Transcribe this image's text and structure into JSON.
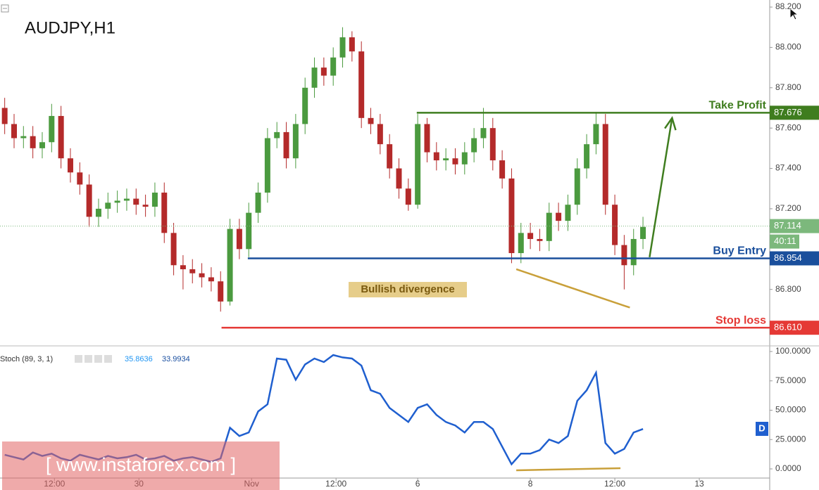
{
  "chart_data": [
    {
      "type": "candlestick",
      "title": "AUDJPY,H1",
      "x": [
        0.5,
        1.5,
        2.5,
        3.5,
        4.5,
        5.5,
        6.5,
        7.5,
        8.5,
        9.5,
        10.5,
        11.5,
        12.5,
        13.5,
        14.5,
        15.5,
        16.5,
        17.5,
        18.5,
        19.5,
        20.5,
        21.5,
        22.5,
        23.5,
        24.5,
        25.5,
        26.5,
        27.5,
        28.5,
        29.5,
        30.5,
        31.5,
        32.5,
        33.5,
        34.5,
        35.5,
        36.5,
        37.5,
        38.5,
        39.5,
        40.5,
        41.5,
        42.5,
        43.5,
        44.5,
        45.5,
        46.5,
        47.5,
        48.5,
        49.5,
        50.5,
        51.5,
        52.5,
        53.5,
        54.5,
        55.5,
        56.5,
        57.5,
        58.5,
        59.5,
        60.5,
        61.5,
        62.5,
        63.5,
        64.5,
        65.5,
        66.5,
        67.5,
        68.5
      ],
      "open": [
        87.7,
        87.62,
        87.55,
        87.56,
        87.5,
        87.53,
        87.66,
        87.45,
        87.38,
        87.32,
        87.16,
        87.2,
        87.23,
        87.24,
        87.25,
        87.22,
        87.21,
        87.28,
        87.08,
        86.92,
        86.9,
        86.88,
        86.86,
        86.84,
        86.74,
        87.1,
        87.0,
        87.18,
        87.28,
        87.55,
        87.58,
        87.45,
        87.62,
        87.8,
        87.9,
        87.86,
        87.95,
        88.05,
        87.98,
        87.65,
        87.62,
        87.52,
        87.4,
        87.3,
        87.22,
        87.62,
        87.48,
        87.44,
        87.45,
        87.42,
        87.48,
        87.55,
        87.6,
        87.44,
        87.35,
        86.98,
        87.08,
        87.05,
        87.04,
        87.18,
        87.14,
        87.22,
        87.4,
        87.52,
        87.62,
        87.22,
        87.02,
        86.92,
        87.05
      ],
      "high": [
        87.75,
        87.67,
        87.61,
        87.61,
        87.58,
        87.72,
        87.71,
        87.5,
        87.43,
        87.37,
        87.25,
        87.28,
        87.29,
        87.3,
        87.3,
        87.27,
        87.33,
        87.33,
        87.13,
        86.97,
        86.95,
        86.93,
        86.91,
        86.89,
        87.15,
        87.15,
        87.23,
        87.33,
        87.6,
        87.63,
        87.63,
        87.67,
        87.85,
        87.95,
        87.95,
        88.0,
        88.1,
        88.08,
        88.03,
        87.7,
        87.67,
        87.57,
        87.45,
        87.35,
        87.67,
        87.65,
        87.53,
        87.5,
        87.5,
        87.53,
        87.6,
        87.7,
        87.65,
        87.49,
        87.4,
        87.13,
        87.13,
        87.1,
        87.23,
        87.23,
        87.27,
        87.45,
        87.57,
        87.68,
        87.67,
        87.27,
        87.07,
        87.1,
        87.16
      ],
      "low": [
        87.57,
        87.5,
        87.5,
        87.45,
        87.45,
        87.48,
        87.4,
        87.33,
        87.27,
        87.11,
        87.11,
        87.15,
        87.18,
        87.19,
        87.17,
        87.16,
        87.16,
        87.03,
        86.87,
        86.8,
        86.83,
        86.81,
        86.79,
        86.69,
        86.72,
        86.95,
        86.96,
        87.13,
        87.23,
        87.5,
        87.4,
        87.4,
        87.57,
        87.75,
        87.81,
        87.81,
        87.9,
        87.93,
        87.6,
        87.57,
        87.47,
        87.35,
        87.25,
        87.19,
        87.2,
        87.43,
        87.39,
        87.39,
        87.37,
        87.37,
        87.43,
        87.5,
        87.39,
        87.3,
        86.93,
        86.93,
        87.0,
        86.99,
        86.99,
        87.09,
        87.09,
        87.17,
        87.35,
        87.47,
        87.17,
        86.97,
        86.8,
        86.87,
        87.0
      ],
      "close": [
        87.62,
        87.55,
        87.56,
        87.5,
        87.53,
        87.66,
        87.45,
        87.38,
        87.32,
        87.16,
        87.2,
        87.23,
        87.24,
        87.25,
        87.22,
        87.21,
        87.28,
        87.08,
        86.92,
        86.9,
        86.88,
        86.86,
        86.84,
        86.74,
        87.1,
        87.0,
        87.18,
        87.28,
        87.55,
        87.58,
        87.45,
        87.62,
        87.8,
        87.9,
        87.86,
        87.95,
        88.05,
        87.98,
        87.65,
        87.62,
        87.52,
        87.4,
        87.3,
        87.22,
        87.62,
        87.48,
        87.44,
        87.45,
        87.42,
        87.48,
        87.55,
        87.6,
        87.44,
        87.35,
        86.98,
        87.08,
        87.05,
        87.04,
        87.18,
        87.14,
        87.22,
        87.4,
        87.52,
        87.62,
        87.22,
        87.02,
        86.92,
        87.05,
        87.11
      ],
      "up_color": "#4b9a3f",
      "down_color": "#b42a2a",
      "xlim": [
        0,
        82
      ],
      "ylim": [
        86.52,
        88.235
      ],
      "yticks": [
        {
          "value": 88.2,
          "label": "88.200"
        },
        {
          "value": 88.0,
          "label": "88.000"
        },
        {
          "value": 87.8,
          "label": "87.800"
        },
        {
          "value": 87.6,
          "label": "87.600"
        },
        {
          "value": 87.4,
          "label": "87.400"
        },
        {
          "value": 87.2,
          "label": "87.200"
        },
        {
          "value": 86.8,
          "label": "86.800"
        }
      ],
      "xticks": [
        {
          "value": 5.8,
          "label": "12:00"
        },
        {
          "value": 14.8,
          "label": "30"
        },
        {
          "value": 26.8,
          "label": "Nov"
        },
        {
          "value": 35.8,
          "label": "12:00"
        },
        {
          "value": 44.5,
          "label": "6"
        },
        {
          "value": 56.5,
          "label": "8"
        },
        {
          "value": 65.5,
          "label": "12:00"
        },
        {
          "value": 74.5,
          "label": "13"
        }
      ],
      "levels": [
        {
          "label": "Take Profit",
          "value": 87.676,
          "value_label": "87.676",
          "x_start": 44.4,
          "color": "#3f7d1f"
        },
        {
          "label": "Buy Entry",
          "value": 86.954,
          "value_label": "86.954",
          "x_start": 26.4,
          "color": "#1a4f9c"
        },
        {
          "label": "Stop loss",
          "value": 86.61,
          "value_label": "86.610",
          "x_start": 23.6,
          "color": "#e53935"
        }
      ],
      "current_price": {
        "value": 87.114,
        "label": "87.114",
        "countdown": "40:11",
        "color": "#7cb87c"
      },
      "divergence_note": "Bullish divergence",
      "divergence_line": {
        "x": [
          55.0,
          67.1
        ],
        "values": [
          86.9,
          86.71
        ],
        "color": "#c9a03a"
      },
      "arrow": {
        "x": [
          69.2,
          71.6
        ],
        "values": [
          86.96,
          87.65
        ],
        "color": "#3f7d1f"
      }
    },
    {
      "type": "line",
      "title": "Stoch (89, 3, 1)",
      "readings": [
        35.8636,
        33.9934
      ],
      "reading_colors": [
        "#2196f3",
        "#1a4fa0"
      ],
      "series": [
        {
          "color": "#1f5fcf",
          "values": [
            12,
            10,
            8,
            14,
            11,
            13,
            9,
            7,
            12,
            10,
            8,
            11,
            9,
            10,
            12,
            8,
            9,
            11,
            7,
            9,
            10,
            8,
            6,
            9,
            35,
            28,
            31,
            49,
            55,
            94,
            93,
            76,
            89,
            94,
            91,
            97,
            95,
            94,
            88,
            67,
            64,
            52,
            46,
            40,
            52,
            55,
            46,
            40,
            37,
            31,
            40,
            40,
            34,
            19,
            4,
            13,
            13,
            16,
            25,
            22,
            28,
            58,
            67,
            82,
            22,
            13,
            17,
            31,
            34
          ]
        }
      ],
      "ylim": [
        -7.8,
        104.2
      ],
      "yticks": [
        {
          "value": 100,
          "label": "100.0000"
        },
        {
          "value": 75,
          "label": "75.0000"
        },
        {
          "value": 50,
          "label": "50.0000"
        },
        {
          "value": 25,
          "label": "25.0000"
        },
        {
          "value": 0,
          "label": "0.0000"
        }
      ],
      "divergence_line": {
        "x": [
          55.0,
          66.1
        ],
        "values": [
          -1.2,
          0.6
        ],
        "color": "#c9a03a"
      },
      "badge": "D"
    }
  ],
  "watermark": "[ www.instaforex.com ]"
}
